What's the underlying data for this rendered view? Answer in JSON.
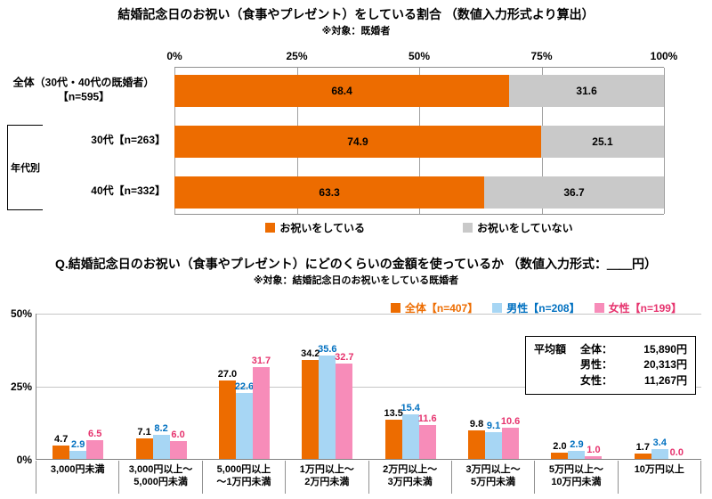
{
  "chart_data": [
    {
      "type": "bar",
      "orientation": "horizontal_stacked",
      "title": "結婚記念日のお祝い（食事やプレゼント）をしている割合 （数値入力形式より算出）",
      "subtitle": "※対象：既婚者",
      "group_bracket_label": "年代別",
      "xlim": [
        0,
        100
      ],
      "x_ticks": [
        "0%",
        "25%",
        "50%",
        "75%",
        "100%"
      ],
      "categories": [
        "全体（30代・40代の既婚者）【n=595】",
        "30代【n=263】",
        "40代【n=332】"
      ],
      "category_lines": [
        [
          "全体（30代・40代の既婚者）",
          "【n=595】"
        ],
        [
          "30代【n=263】"
        ],
        [
          "40代【n=332】"
        ]
      ],
      "series": [
        {
          "name": "お祝いをしている",
          "color": "#ED6C00",
          "values": [
            68.4,
            74.9,
            63.3
          ]
        },
        {
          "name": "お祝いをしていない",
          "color": "#C9C9C9",
          "values": [
            31.6,
            25.1,
            36.7
          ]
        }
      ],
      "legend_position": "bottom",
      "grid": "vertical lines at 0/25/50/75/100"
    },
    {
      "type": "bar",
      "orientation": "vertical_grouped",
      "title": "Q.結婚記念日のお祝い（食事やプレゼント）にどのくらいの金額を使っているか （数値入力形式：＿＿円）",
      "subtitle": "※対象：結婚記念日のお祝いをしている既婚者",
      "ylim": [
        0,
        50
      ],
      "y_ticks": [
        "50%",
        "25%",
        "0%"
      ],
      "grid": "horizontal lines at 25% and 50%",
      "legend_position": "top-right",
      "categories": [
        "3,000円未満",
        "3,000円以上～5,000円未満",
        "5,000円以上～1万円未満",
        "1万円以上～2万円未満",
        "2万円以上～3万円未満",
        "3万円以上～5万円未満",
        "5万円以上～10万円未満",
        "10万円以上"
      ],
      "category_lines": [
        [
          "3,000円未満"
        ],
        [
          "3,000円以上～",
          "5,000円未満"
        ],
        [
          "5,000円以上",
          "～1万円未満"
        ],
        [
          "1万円以上～",
          "2万円未満"
        ],
        [
          "2万円以上～",
          "3万円未満"
        ],
        [
          "3万円以上～",
          "5万円未満"
        ],
        [
          "5万円以上～",
          "10万円未満"
        ],
        [
          "10万円以上"
        ]
      ],
      "series": [
        {
          "name": "全体【n=407】",
          "color": "#ED6C00",
          "label_color": "#000000",
          "legend_color": "#ED6C00",
          "values": [
            4.7,
            7.1,
            27.0,
            34.2,
            13.5,
            9.8,
            2.0,
            1.7
          ]
        },
        {
          "name": "男性【n=208】",
          "color": "#A7D6F4",
          "label_color": "#0070C0",
          "legend_color": "#0070C0",
          "values": [
            2.9,
            8.2,
            22.6,
            35.6,
            15.4,
            9.1,
            2.9,
            3.4
          ]
        },
        {
          "name": "女性【n=199】",
          "color": "#F78CB9",
          "label_color": "#E6336E",
          "legend_color": "#E6336E",
          "values": [
            6.5,
            6.0,
            31.7,
            32.7,
            11.6,
            10.6,
            1.0,
            0.0
          ]
        }
      ],
      "average_box": {
        "title": "平均額",
        "rows": [
          {
            "label": "全体：",
            "value": "15,890円"
          },
          {
            "label": "男性：",
            "value": "20,313円"
          },
          {
            "label": "女性：",
            "value": "11,267円"
          }
        ]
      }
    }
  ]
}
